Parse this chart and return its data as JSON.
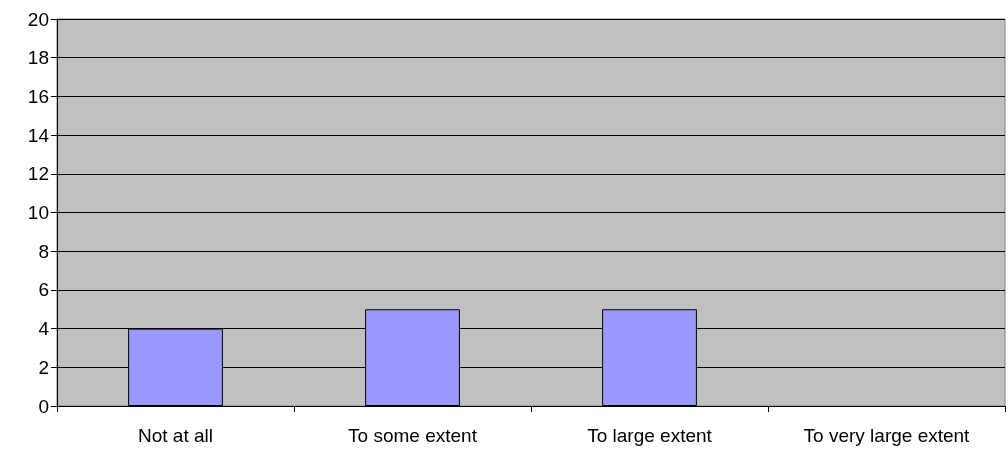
{
  "chart_data": {
    "type": "bar",
    "categories": [
      "Not at all",
      "To some extent",
      "To large extent",
      "To very large extent"
    ],
    "values": [
      4,
      5,
      5,
      0
    ],
    "color": "#9999ff",
    "ylim": [
      0,
      20
    ],
    "yticks": [
      0,
      2,
      4,
      6,
      8,
      10,
      12,
      14,
      16,
      18,
      20
    ],
    "grid": "y"
  }
}
